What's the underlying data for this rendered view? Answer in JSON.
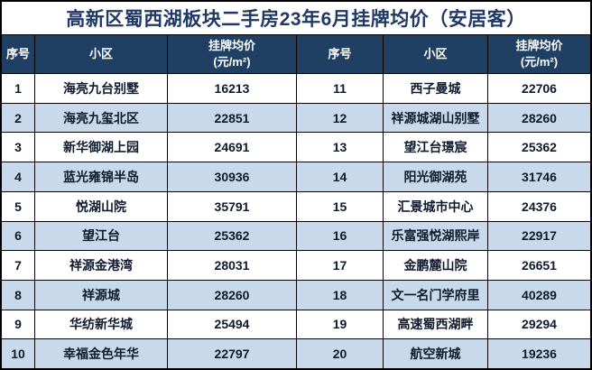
{
  "title": "高新区蜀西湖板块二手房23年6月挂牌均价（安居客）",
  "headers": {
    "index": "序号",
    "community": "小区",
    "price_line1": "挂牌均价",
    "price_line2": "(元/m²)"
  },
  "colors": {
    "header_bg": "#204063",
    "row_alt_bg": "#c9d9ec",
    "title_color": "#1f3864",
    "border": "#000000",
    "cell_text": "#0e1a2e"
  },
  "chart_data": {
    "type": "table",
    "title": "高新区蜀西湖板块二手房23年6月挂牌均价（安居客）",
    "columns": [
      "序号",
      "小区",
      "挂牌均价(元/m²)"
    ],
    "layout": "two side-by-side tables, rows 1-10 left and 11-20 right, alternating white/light-blue rows",
    "rows": [
      [
        "1",
        "海亮九台别墅",
        "16213"
      ],
      [
        "2",
        "海亮九玺北区",
        "22851"
      ],
      [
        "3",
        "新华御湖上园",
        "24691"
      ],
      [
        "4",
        "蓝光雍锦半岛",
        "30936"
      ],
      [
        "5",
        "悦湖山院",
        "35791"
      ],
      [
        "6",
        "望江台",
        "25362"
      ],
      [
        "7",
        "祥源金港湾",
        "28031"
      ],
      [
        "8",
        "祥源城",
        "28260"
      ],
      [
        "9",
        "华纺新华城",
        "25494"
      ],
      [
        "10",
        "幸福金色年华",
        "22797"
      ],
      [
        "11",
        "西子曼城",
        "22706"
      ],
      [
        "12",
        "祥源城湖山别墅",
        "28260"
      ],
      [
        "13",
        "望江台璟宸",
        "25362"
      ],
      [
        "14",
        "阳光御湖苑",
        "31746"
      ],
      [
        "15",
        "汇景城市中心",
        "24376"
      ],
      [
        "16",
        "乐富强悦湖熙岸",
        "22917"
      ],
      [
        "17",
        "金鹏麓山院",
        "26651"
      ],
      [
        "18",
        "文一名门学府里",
        "40289"
      ],
      [
        "19",
        "高速蜀西湖畔",
        "29294"
      ],
      [
        "20",
        "航空新城",
        "19236"
      ]
    ]
  }
}
